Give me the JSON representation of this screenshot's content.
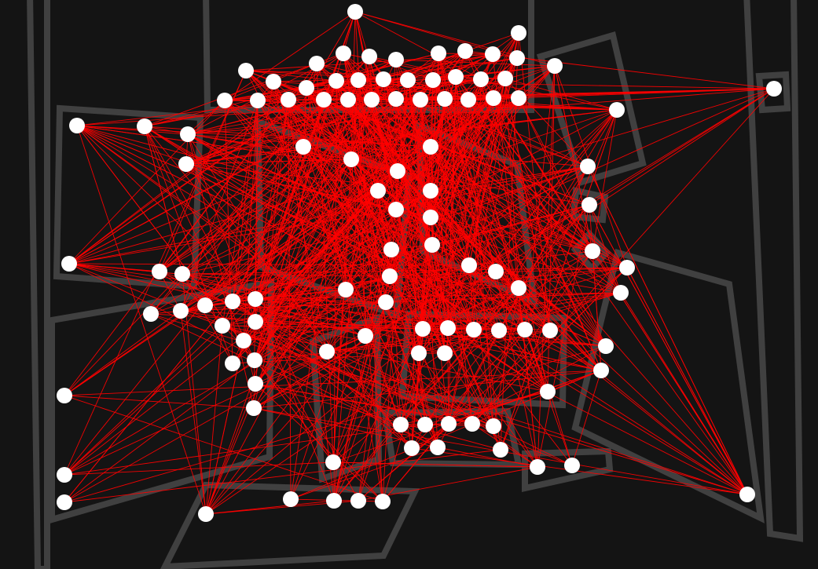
{
  "diagram": {
    "type": "graph-over-regions",
    "colors": {
      "background": "#141414",
      "region_outline": "#404040",
      "edge": "#ff0000",
      "node": "#ffffff"
    },
    "region_count": 16,
    "node_count": 106,
    "regions": [
      {
        "id": "r-outer-left"
      },
      {
        "id": "r-top-box"
      },
      {
        "id": "r-left-box"
      },
      {
        "id": "r-center-quad"
      },
      {
        "id": "r-right-tall-quad"
      },
      {
        "id": "r-upper-right-quad"
      },
      {
        "id": "r-small-square"
      },
      {
        "id": "r-tiny-square"
      },
      {
        "id": "r-diamond"
      },
      {
        "id": "r-lower-left-box"
      },
      {
        "id": "r-center-lower-quad"
      },
      {
        "id": "r-small-lower-quad"
      },
      {
        "id": "r-bottom-center-box"
      },
      {
        "id": "r-bottom-small-box"
      },
      {
        "id": "r-right-large-quad"
      },
      {
        "id": "r-bottom-trapezoid"
      }
    ]
  }
}
